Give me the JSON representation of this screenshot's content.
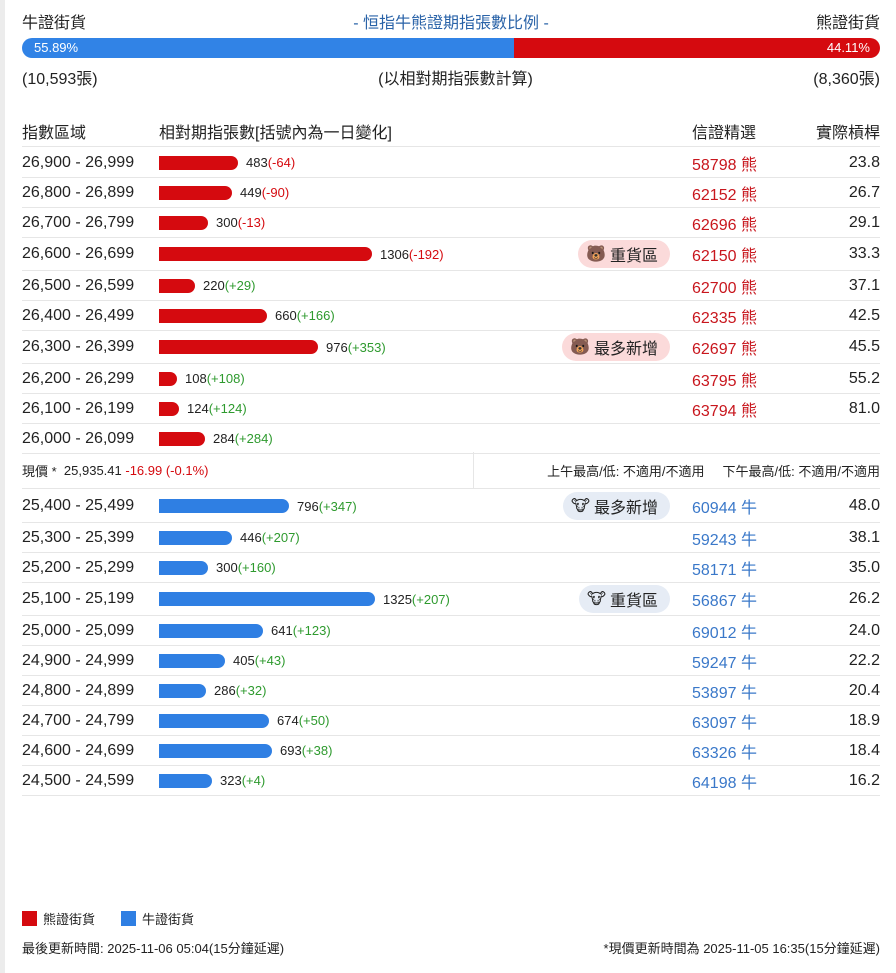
{
  "header": {
    "bull_label": "牛證街貨",
    "title": "- 恒指牛熊證期指張數比例 -",
    "bear_label": "熊證街貨",
    "bull_pct": "55.89%",
    "bear_pct": "44.11%",
    "bull_ratio": 55.89,
    "bull_count": "(10,593張)",
    "note": "(以相對期指張數計算)",
    "bear_count": "(8,360張)"
  },
  "columns": {
    "range": "指數區域",
    "qty": "相對期指張數[括號內為一日變化]",
    "pick": "信證精選",
    "lev": "實際槓桿"
  },
  "bear_rows": [
    {
      "range": "26,900 - 26,999",
      "qty": 483,
      "qty_text": "483",
      "chg": "(-64)",
      "code": "58798 熊",
      "lev": "23.8"
    },
    {
      "range": "26,800 - 26,899",
      "qty": 449,
      "qty_text": "449",
      "chg": "(-90)",
      "code": "62152 熊",
      "lev": "26.7"
    },
    {
      "range": "26,700 - 26,799",
      "qty": 300,
      "qty_text": "300",
      "chg": "(-13)",
      "code": "62696 熊",
      "lev": "29.1"
    },
    {
      "range": "26,600 - 26,699",
      "qty": 1306,
      "qty_text": "1306",
      "chg": "(-192)",
      "badge": "重貨區",
      "code": "62150 熊",
      "lev": "33.3"
    },
    {
      "range": "26,500 - 26,599",
      "qty": 220,
      "qty_text": "220",
      "chg": "(+29)",
      "code": "62700 熊",
      "lev": "37.1"
    },
    {
      "range": "26,400 - 26,499",
      "qty": 660,
      "qty_text": "660",
      "chg": "(+166)",
      "code": "62335 熊",
      "lev": "42.5"
    },
    {
      "range": "26,300 - 26,399",
      "qty": 976,
      "qty_text": "976",
      "chg": "(+353)",
      "badge": "最多新增",
      "code": "62697 熊",
      "lev": "45.5"
    },
    {
      "range": "26,200 - 26,299",
      "qty": 108,
      "qty_text": "108",
      "chg": "(+108)",
      "code": "63795 熊",
      "lev": "55.2"
    },
    {
      "range": "26,100 - 26,199",
      "qty": 124,
      "qty_text": "124",
      "chg": "(+124)",
      "code": "63794 熊",
      "lev": "81.0"
    },
    {
      "range": "26,000 - 26,099",
      "qty": 284,
      "qty_text": "284",
      "chg": "(+284)",
      "code": "",
      "lev": ""
    }
  ],
  "current": {
    "label": "現價 *",
    "price": "25,935.41",
    "change": "-16.99 (-0.1%)",
    "am": "上午最高/低: 不適用/不適用",
    "pm": "下午最高/低: 不適用/不適用"
  },
  "bull_rows": [
    {
      "range": "25,400 - 25,499",
      "qty": 796,
      "qty_text": "796",
      "chg": "(+347)",
      "badge": "最多新增",
      "code": "60944 牛",
      "lev": "48.0"
    },
    {
      "range": "25,300 - 25,399",
      "qty": 446,
      "qty_text": "446",
      "chg": "(+207)",
      "code": "59243 牛",
      "lev": "38.1"
    },
    {
      "range": "25,200 - 25,299",
      "qty": 300,
      "qty_text": "300",
      "chg": "(+160)",
      "code": "58171 牛",
      "lev": "35.0"
    },
    {
      "range": "25,100 - 25,199",
      "qty": 1325,
      "qty_text": "1325",
      "chg": "(+207)",
      "badge": "重貨區",
      "code": "56867 牛",
      "lev": "26.2"
    },
    {
      "range": "25,000 - 25,099",
      "qty": 641,
      "qty_text": "641",
      "chg": "(+123)",
      "code": "69012 牛",
      "lev": "24.0"
    },
    {
      "range": "24,900 - 24,999",
      "qty": 405,
      "qty_text": "405",
      "chg": "(+43)",
      "code": "59247 牛",
      "lev": "22.2"
    },
    {
      "range": "24,800 - 24,899",
      "qty": 286,
      "qty_text": "286",
      "chg": "(+32)",
      "code": "53897 牛",
      "lev": "20.4"
    },
    {
      "range": "24,700 - 24,799",
      "qty": 674,
      "qty_text": "674",
      "chg": "(+50)",
      "code": "63097 牛",
      "lev": "18.9"
    },
    {
      "range": "24,600 - 24,699",
      "qty": 693,
      "qty_text": "693",
      "chg": "(+38)",
      "code": "63326 牛",
      "lev": "18.4"
    },
    {
      "range": "24,500 - 24,599",
      "qty": 323,
      "qty_text": "323",
      "chg": "(+4)",
      "code": "64198 牛",
      "lev": "16.2"
    }
  ],
  "legend": {
    "bear": "熊證街貨",
    "bull": "牛證街貨",
    "bear_color": "#d50a0f",
    "bull_color": "#2f7fe3"
  },
  "footer": {
    "updated": "最後更新時間: 2025-11-06 05:04(15分鐘延遲)",
    "price_updated": "*現價更新時間為 2025-11-05 16:35(15分鐘延遲)"
  }
}
